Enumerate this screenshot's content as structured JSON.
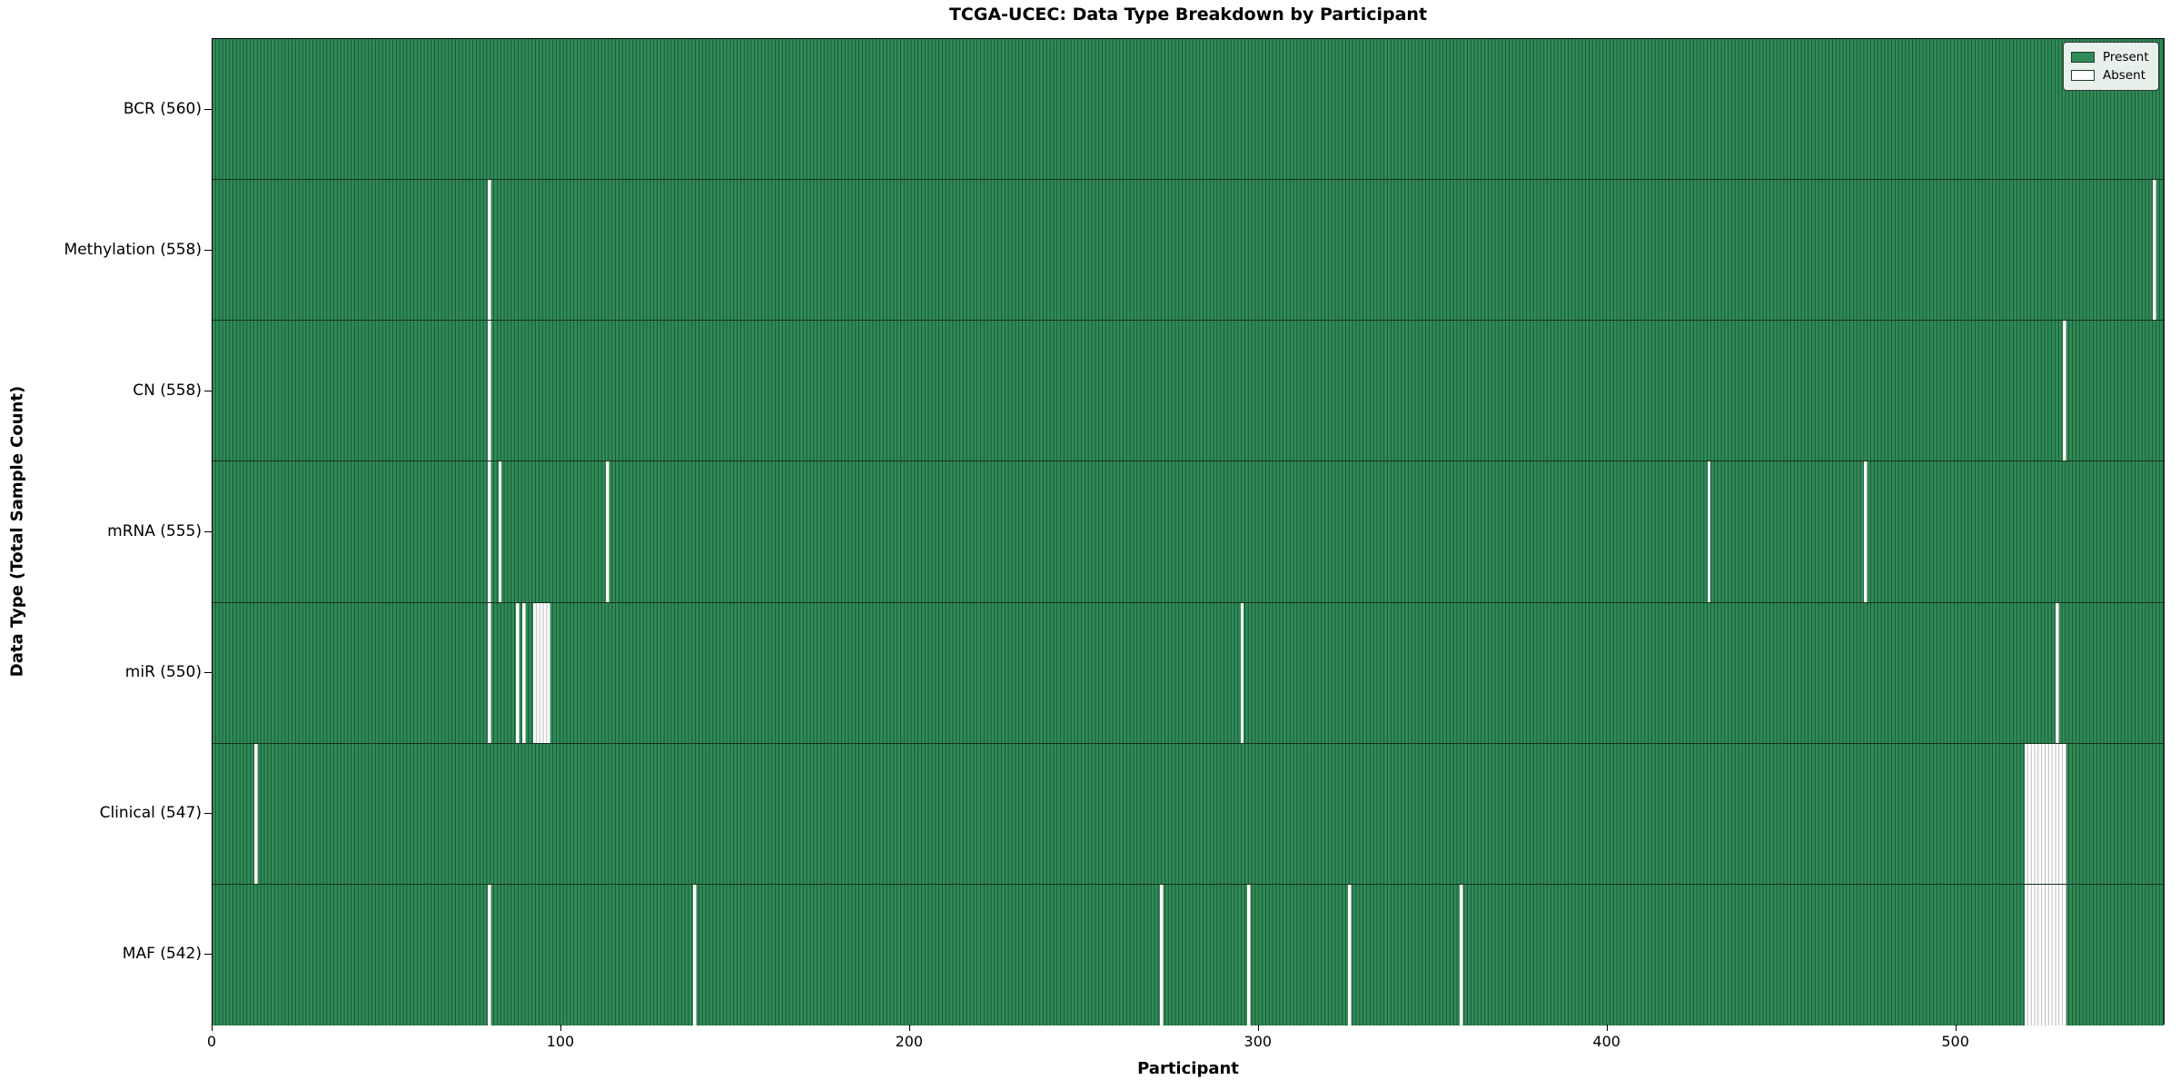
{
  "figure": {
    "title": "TCGA-UCEC: Data Type Breakdown by Participant",
    "xlabel": "Participant",
    "ylabel": "Data Type (Total Sample Count)"
  },
  "legend": {
    "position": "upper right",
    "items": [
      {
        "label": "Present",
        "color": "#2f8c58"
      },
      {
        "label": "Absent",
        "color": "#ffffff"
      }
    ]
  },
  "colors": {
    "present_fill": "#2f8c58",
    "present_edge": "#1c5434",
    "absent_fill": "#ffffff",
    "absent_edge": "#b4bdb6",
    "spine": "#000000"
  },
  "chart_data": {
    "type": "heatmap",
    "title": "TCGA-UCEC: Data Type Breakdown by Participant",
    "xlabel": "Participant",
    "ylabel": "Data Type (Total Sample Count)",
    "xlim": [
      0,
      560
    ],
    "x_ticks": [
      0,
      100,
      200,
      300,
      400,
      500
    ],
    "total_participants": 560,
    "grid": false,
    "legend_position": "upper right",
    "value_encoding": {
      "present": "green cell",
      "absent": "white cell"
    },
    "rows": [
      {
        "id": "bcr",
        "label": "BCR (560)",
        "data_type": "BCR",
        "present_count": 560,
        "absent_count": 0,
        "absent_ranges": []
      },
      {
        "id": "methylation",
        "label": "Methylation (558)",
        "data_type": "Methylation",
        "present_count": 558,
        "absent_count": 2,
        "absent_ranges": [
          [
            79,
            80
          ],
          [
            557,
            558
          ]
        ]
      },
      {
        "id": "cn",
        "label": "CN (558)",
        "data_type": "CN",
        "present_count": 558,
        "absent_count": 2,
        "absent_ranges": [
          [
            79,
            80
          ],
          [
            531,
            532
          ]
        ]
      },
      {
        "id": "mrna",
        "label": "mRNA (555)",
        "data_type": "mRNA",
        "present_count": 555,
        "absent_count": 5,
        "absent_ranges": [
          [
            79,
            80
          ],
          [
            82,
            83
          ],
          [
            113,
            114
          ],
          [
            429,
            430
          ],
          [
            474,
            475
          ]
        ]
      },
      {
        "id": "mir",
        "label": "miR (550)",
        "data_type": "miR",
        "present_count": 550,
        "absent_count": 10,
        "absent_ranges": [
          [
            79,
            80
          ],
          [
            87,
            88
          ],
          [
            89,
            90
          ],
          [
            92,
            97
          ],
          [
            295,
            296
          ],
          [
            529,
            530
          ]
        ]
      },
      {
        "id": "clinical",
        "label": "Clinical (547)",
        "data_type": "Clinical",
        "present_count": 547,
        "absent_count": 13,
        "absent_ranges": [
          [
            12,
            13
          ],
          [
            520,
            532
          ]
        ]
      },
      {
        "id": "maf",
        "label": "MAF (542)",
        "data_type": "MAF",
        "present_count": 542,
        "absent_count": 18,
        "absent_ranges": [
          [
            79,
            80
          ],
          [
            138,
            139
          ],
          [
            272,
            273
          ],
          [
            297,
            298
          ],
          [
            326,
            327
          ],
          [
            358,
            359
          ],
          [
            520,
            532
          ]
        ]
      }
    ]
  }
}
